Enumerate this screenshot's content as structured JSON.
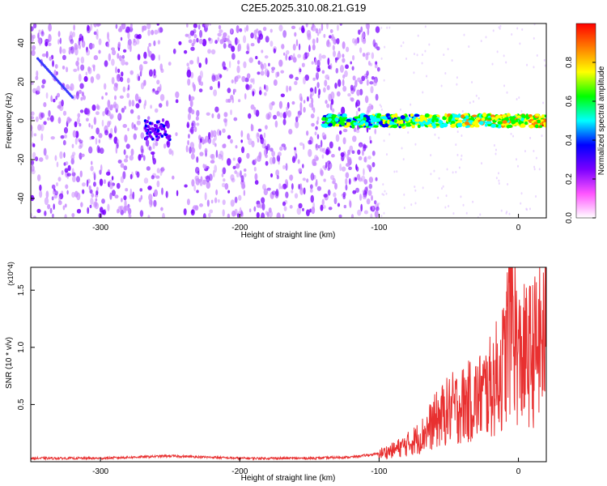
{
  "title": "C2E5.2025.310.08.21.G19",
  "chart_data": [
    {
      "type": "heatmap",
      "xlabel": "Height of straight line (km)",
      "ylabel": "Frequency (Hz)",
      "xlim": [
        -350,
        20
      ],
      "ylim": [
        -50,
        50
      ],
      "x_ticks": [
        -300,
        -200,
        -100,
        0
      ],
      "y_ticks": [
        -40,
        -20,
        0,
        20,
        40
      ],
      "colorbar": {
        "label": "Normalized spectral amplitude",
        "range": [
          0,
          1
        ],
        "ticks": [
          0.0,
          0.2,
          0.4,
          0.6,
          0.8
        ],
        "colors": [
          "#ffffff",
          "#ff55ff",
          "#7a00ff",
          "#0000ff",
          "#00ffff",
          "#00ff00",
          "#ffff00",
          "#ff7f00",
          "#ff0000"
        ]
      },
      "features": [
        {
          "desc": "strong band near 0 Hz",
          "x_range": [
            -140,
            20
          ],
          "freq": 0,
          "amplitude": 0.75
        },
        {
          "desc": "patch",
          "x_range": [
            -268,
            -250
          ],
          "freq": -5,
          "amplitude": 0.35
        },
        {
          "desc": "diagonal streak",
          "x_start": -345,
          "x_end": -320,
          "f_start": 32,
          "f_end": 12
        }
      ],
      "grid": false
    },
    {
      "type": "line",
      "xlabel": "Height of straight line (km)",
      "ylabel": "SNR (10 * v/v)",
      "y_multiplier": "(x10^4)",
      "xlim": [
        -350,
        20
      ],
      "ylim": [
        0,
        1.7
      ],
      "x_ticks": [
        -300,
        -200,
        -100,
        0
      ],
      "y_ticks": [
        0.5,
        1.0,
        1.5
      ],
      "color": "#e83030",
      "x": [
        -350,
        -300,
        -250,
        -200,
        -150,
        -120,
        -100,
        -90,
        -80,
        -70,
        -60,
        -50,
        -40,
        -30,
        -20,
        -10,
        -5,
        0,
        10,
        20
      ],
      "y": [
        0.03,
        0.03,
        0.05,
        0.03,
        0.03,
        0.04,
        0.07,
        0.1,
        0.15,
        0.22,
        0.35,
        0.45,
        0.5,
        0.55,
        0.65,
        0.85,
        1.4,
        0.9,
        0.95,
        1.1
      ],
      "grid": false
    }
  ]
}
